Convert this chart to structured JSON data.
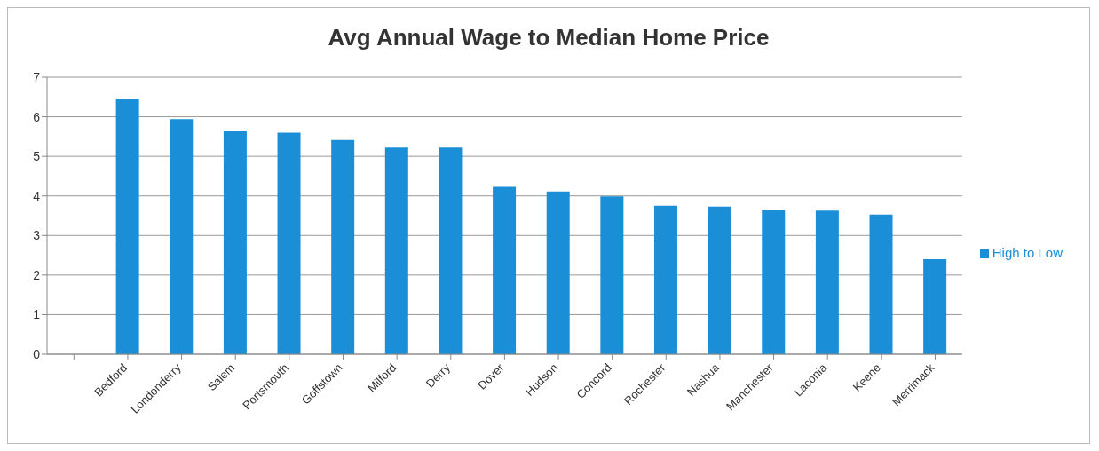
{
  "chart_data": {
    "type": "bar",
    "title": "Avg Annual Wage to Median Home Price",
    "categories": [
      null,
      "Bedford",
      "Londonderry",
      "Salem",
      "Portsmouth",
      "Goffstown",
      "Milford",
      "Derry",
      "Dover",
      "Hudson",
      "Concord",
      "Rochester",
      "Nashua",
      "Manchester",
      "Laconia",
      "Keene",
      "Merrimack"
    ],
    "series": [
      {
        "name": "High to Low",
        "color": "#1a8fd8",
        "values": [
          null,
          6.45,
          5.94,
          5.65,
          5.6,
          5.41,
          5.22,
          5.22,
          4.23,
          4.11,
          3.99,
          3.75,
          3.73,
          3.65,
          3.63,
          3.53,
          2.4
        ]
      }
    ],
    "ylim": [
      0,
      7
    ],
    "yticks": [
      0,
      1,
      2,
      3,
      4,
      5,
      6,
      7
    ],
    "grid": "y",
    "legend": "right"
  }
}
